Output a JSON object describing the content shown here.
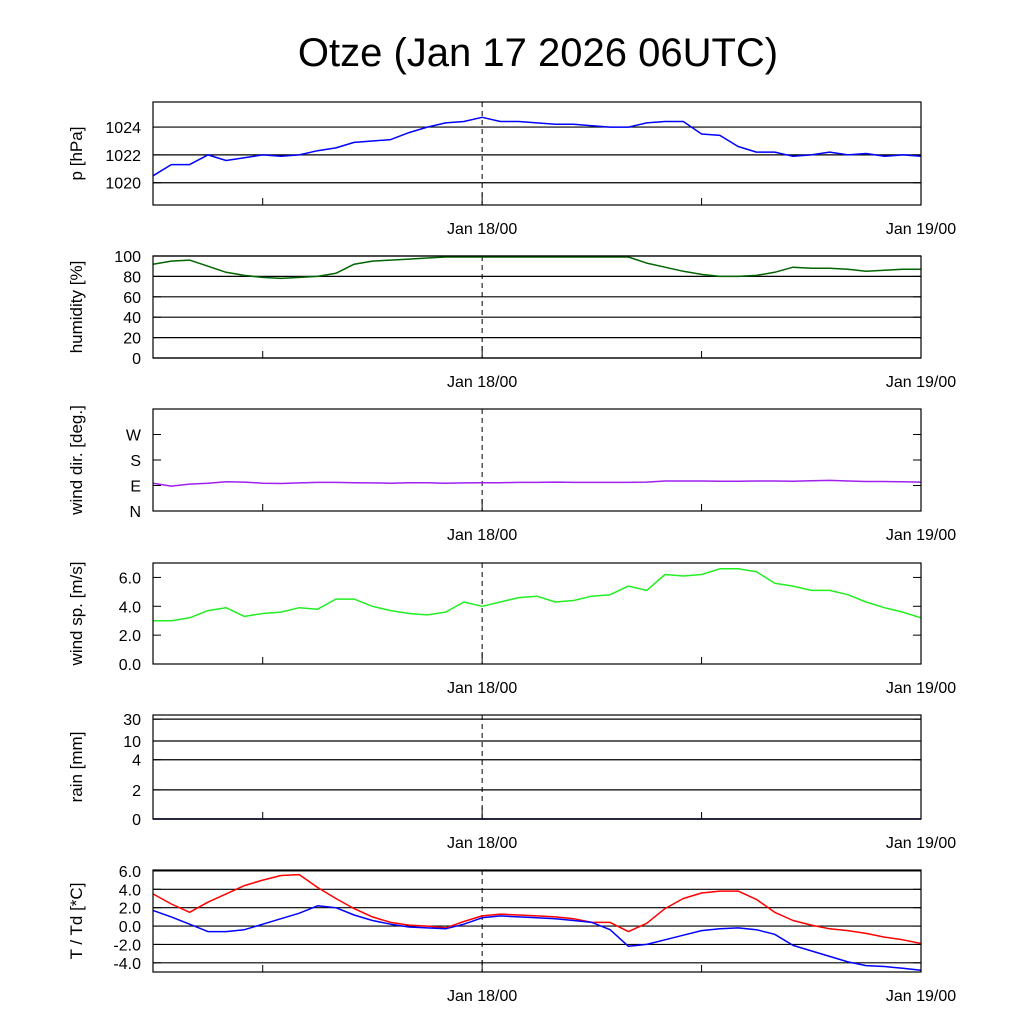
{
  "chart_data": {
    "type": "line",
    "title": "Otze (Jan 17 2026 06UTC)",
    "x_unit": "hours since Jan 17 06UTC",
    "x": [
      0,
      1,
      2,
      3,
      4,
      5,
      6,
      7,
      8,
      9,
      10,
      11,
      12,
      13,
      14,
      15,
      16,
      17,
      18,
      19,
      20,
      21,
      22,
      23,
      24,
      25,
      26,
      27,
      28,
      29,
      30,
      31,
      32,
      33,
      34,
      35,
      36,
      37,
      38,
      39,
      40,
      41,
      42
    ],
    "xlim": [
      0,
      42
    ],
    "x_ticks": [
      {
        "x": 18,
        "label": "Jan 18/00"
      },
      {
        "x": 42,
        "label": "Jan 19/00"
      }
    ],
    "x_minor_ticks": [
      6,
      30
    ],
    "x_marker": 18,
    "panels": [
      {
        "id": "pressure",
        "ylabel": "p [hPa]",
        "ylim": [
          1018.4,
          1025.8
        ],
        "grid": true,
        "yticks": [
          {
            "v": 1020,
            "label": "1020"
          },
          {
            "v": 1022,
            "label": "1022"
          },
          {
            "v": 1024,
            "label": "1024"
          }
        ],
        "series": [
          {
            "name": "pressure",
            "color": "#0000ff",
            "values": [
              1020.5,
              1021.3,
              1021.3,
              1022.0,
              1021.6,
              1021.8,
              1022.0,
              1021.9,
              1022.0,
              1022.3,
              1022.5,
              1022.9,
              1023.0,
              1023.1,
              1023.6,
              1024.0,
              1024.3,
              1024.4,
              1024.7,
              1024.4,
              1024.4,
              1024.3,
              1024.2,
              1024.2,
              1024.1,
              1024.0,
              1024.0,
              1024.3,
              1024.4,
              1024.4,
              1023.5,
              1023.4,
              1022.6,
              1022.2,
              1022.2,
              1021.9,
              1022.0,
              1022.2,
              1022.0,
              1022.1,
              1021.9,
              1022.0,
              1021.9
            ]
          }
        ]
      },
      {
        "id": "humidity",
        "ylabel": "humidity [%]",
        "ylim": [
          0,
          100
        ],
        "grid": true,
        "yticks": [
          {
            "v": 0,
            "label": "0"
          },
          {
            "v": 20,
            "label": "20"
          },
          {
            "v": 40,
            "label": "40"
          },
          {
            "v": 60,
            "label": "60"
          },
          {
            "v": 80,
            "label": "80"
          },
          {
            "v": 100,
            "label": "100"
          }
        ],
        "series": [
          {
            "name": "humidity",
            "color": "#006400",
            "values": [
              92,
              95,
              96,
              90,
              84,
              81,
              79,
              78,
              79,
              80,
              83,
              92,
              95,
              96,
              97,
              98,
              99,
              99,
              99,
              99,
              99,
              99,
              99,
              99,
              99,
              99,
              99,
              93,
              89,
              85,
              82,
              80,
              80,
              81,
              84,
              89,
              88,
              88,
              87,
              85,
              86,
              87,
              87
            ]
          }
        ]
      },
      {
        "id": "wind_dir",
        "ylabel": "wind dir. [deg.]",
        "ylim": [
          0,
          360
        ],
        "grid": false,
        "yticks": [
          {
            "v": 0,
            "label": "N"
          },
          {
            "v": 90,
            "label": "E"
          },
          {
            "v": 180,
            "label": "S"
          },
          {
            "v": 270,
            "label": "W"
          }
        ],
        "series": [
          {
            "name": "wind direction",
            "color": "#a020f0",
            "values": [
              98,
              88,
              95,
              98,
              103,
              102,
              98,
              97,
              99,
              101,
              101,
              100,
              99,
              98,
              100,
              100,
              98,
              99,
              100,
              100,
              101,
              101,
              102,
              101,
              101,
              101,
              101,
              102,
              106,
              106,
              106,
              105,
              105,
              106,
              106,
              105,
              107,
              108,
              106,
              104,
              104,
              103,
              102
            ]
          }
        ]
      },
      {
        "id": "wind_speed",
        "ylabel": "wind sp. [m/s]",
        "ylim": [
          0,
          7
        ],
        "grid": false,
        "yticks": [
          {
            "v": 0,
            "label": "0.0"
          },
          {
            "v": 2,
            "label": "2.0"
          },
          {
            "v": 4,
            "label": "4.0"
          },
          {
            "v": 6,
            "label": "6.0"
          }
        ],
        "series": [
          {
            "name": "wind speed",
            "color": "#22ee22",
            "values": [
              3.0,
              3.0,
              3.2,
              3.7,
              3.9,
              3.3,
              3.5,
              3.6,
              3.9,
              3.8,
              4.5,
              4.5,
              4.0,
              3.7,
              3.5,
              3.4,
              3.6,
              4.3,
              4.0,
              4.3,
              4.6,
              4.7,
              4.3,
              4.4,
              4.7,
              4.8,
              5.4,
              5.1,
              6.2,
              6.1,
              6.2,
              6.6,
              6.6,
              6.4,
              5.6,
              5.4,
              5.1,
              5.1,
              4.8,
              4.3,
              3.9,
              3.6,
              3.2
            ]
          }
        ]
      },
      {
        "id": "rain",
        "ylabel": "rain [mm]",
        "ylim": [
          0,
          30
        ],
        "grid": true,
        "scale": "nonlinear",
        "yticks": [
          {
            "v": 0,
            "label": "0"
          },
          {
            "v": 2,
            "label": "2"
          },
          {
            "v": 4,
            "label": "4"
          },
          {
            "v": 10,
            "label": "10"
          },
          {
            "v": 30,
            "label": "30"
          }
        ],
        "series": [
          {
            "name": "rain",
            "color": "#000080",
            "values": [
              0,
              0,
              0,
              0,
              0,
              0,
              0,
              0,
              0,
              0,
              0,
              0,
              0,
              0,
              0,
              0,
              0,
              0,
              0,
              0,
              0,
              0,
              0,
              0,
              0,
              0,
              0,
              0,
              0,
              0,
              0,
              0,
              0,
              0,
              0,
              0,
              0,
              0,
              0,
              0,
              0,
              0,
              0
            ]
          }
        ]
      },
      {
        "id": "temperature",
        "ylabel": "T / Td [*C]",
        "ylim": [
          -5.0,
          6.1
        ],
        "grid": true,
        "yticks": [
          {
            "v": -4,
            "label": "-4.0"
          },
          {
            "v": -2,
            "label": "-2.0"
          },
          {
            "v": 0,
            "label": "0.0"
          },
          {
            "v": 2,
            "label": "2.0"
          },
          {
            "v": 4,
            "label": "4.0"
          },
          {
            "v": 6,
            "label": "6.0"
          }
        ],
        "series": [
          {
            "name": "T",
            "color": "#ff0000",
            "values": [
              3.5,
              2.4,
              1.5,
              2.6,
              3.5,
              4.4,
              5.0,
              5.5,
              5.6,
              4.2,
              3.0,
              1.9,
              1.0,
              0.4,
              0.1,
              0.0,
              -0.2,
              0.5,
              1.1,
              1.3,
              1.2,
              1.1,
              1.0,
              0.8,
              0.4,
              0.4,
              -0.6,
              0.3,
              1.9,
              3.0,
              3.6,
              3.8,
              3.8,
              2.9,
              1.5,
              0.6,
              0.1,
              -0.3,
              -0.5,
              -0.8,
              -1.2,
              -1.5,
              -1.9
            ]
          },
          {
            "name": "Td",
            "color": "#0000ff",
            "values": [
              1.7,
              1.0,
              0.2,
              -0.6,
              -0.6,
              -0.4,
              0.2,
              0.8,
              1.4,
              2.2,
              2.0,
              1.2,
              0.6,
              0.2,
              -0.1,
              -0.2,
              -0.3,
              0.2,
              0.9,
              1.1,
              1.0,
              0.9,
              0.8,
              0.6,
              0.4,
              -0.4,
              -2.2,
              -2.0,
              -1.5,
              -1.0,
              -0.5,
              -0.3,
              -0.2,
              -0.4,
              -0.9,
              -2.1,
              -2.7,
              -3.3,
              -3.9,
              -4.3,
              -4.4,
              -4.6,
              -4.8
            ]
          }
        ]
      }
    ]
  }
}
